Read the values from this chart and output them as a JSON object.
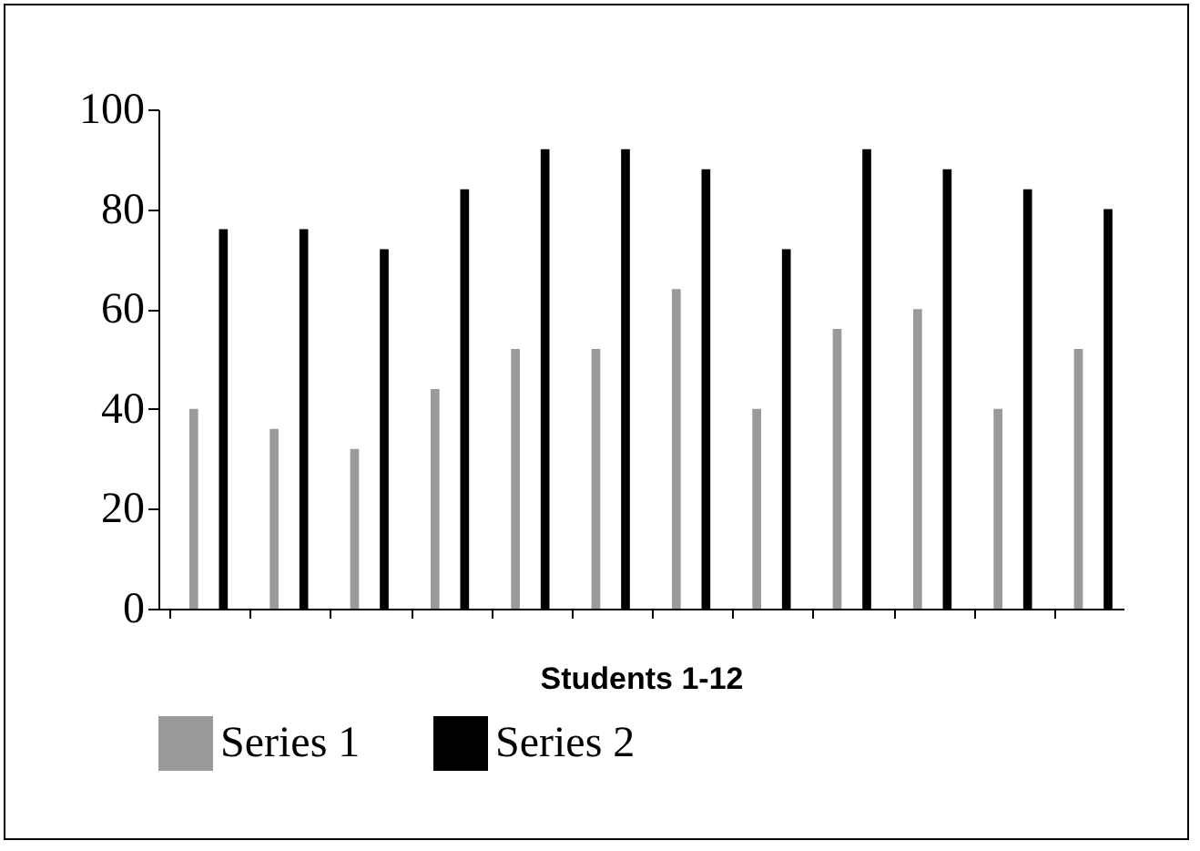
{
  "chart_data": {
    "type": "bar",
    "xlabel": "Students 1-12",
    "categories": [
      null,
      null,
      null,
      null,
      null,
      null,
      null,
      null,
      null,
      null,
      null,
      null
    ],
    "series": [
      {
        "name": "Series 1",
        "color": "#9a9a9a",
        "values": [
          40,
          36,
          32,
          44,
          52,
          52,
          64,
          40,
          56,
          60,
          40,
          52
        ]
      },
      {
        "name": "Series 2",
        "color": "#000000",
        "values": [
          76,
          76,
          72,
          84,
          92,
          92,
          88,
          72,
          92,
          88,
          84,
          80
        ]
      }
    ],
    "ylim": [
      0,
      100
    ],
    "yticks": [
      0,
      20,
      40,
      60,
      80,
      100
    ],
    "grid": false,
    "legend": "bottom",
    "tick_labels": "y"
  }
}
